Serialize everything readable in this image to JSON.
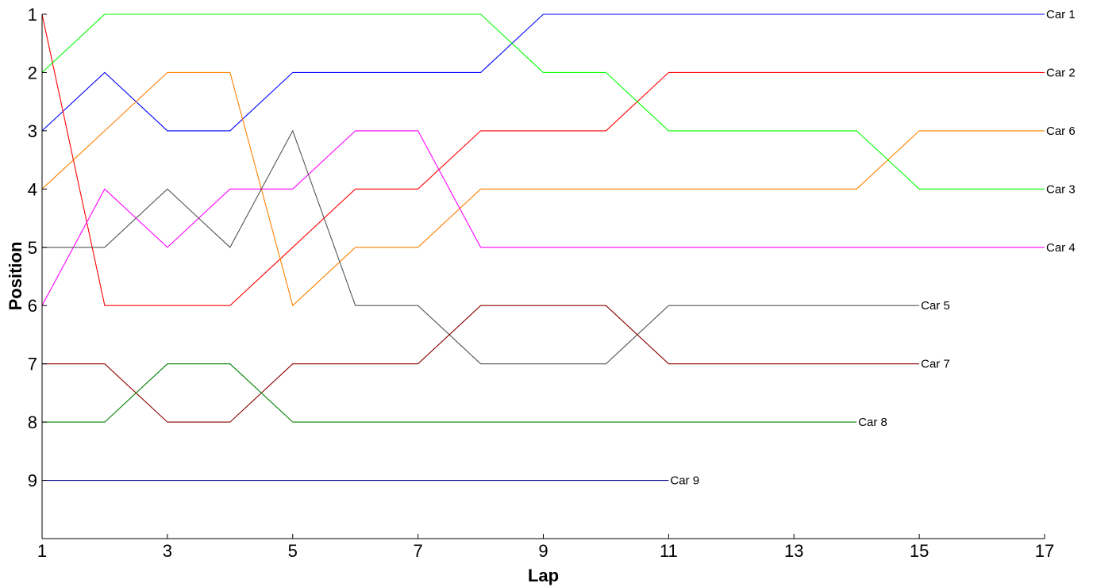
{
  "chart_data": {
    "type": "line",
    "xlabel": "Lap",
    "ylabel": "Position",
    "xlim": [
      1,
      17
    ],
    "ylim": [
      10,
      1
    ],
    "y_inverted": true,
    "xticks": [
      1,
      3,
      5,
      7,
      9,
      11,
      13,
      15,
      17
    ],
    "yticks": [
      1,
      2,
      3,
      4,
      5,
      6,
      7,
      8,
      9
    ],
    "grid": false,
    "legend": "end-of-line labels",
    "series": [
      {
        "name": "Car 1",
        "color": "#0000ff",
        "x": [
          1,
          2,
          3,
          4,
          5,
          6,
          7,
          8,
          9,
          10,
          11,
          12,
          13,
          14,
          15,
          16,
          17
        ],
        "y": [
          3,
          2,
          3,
          3,
          2,
          2,
          2,
          2,
          1,
          1,
          1,
          1,
          1,
          1,
          1,
          1,
          1
        ]
      },
      {
        "name": "Car 2",
        "color": "#ff0000",
        "x": [
          1,
          2,
          3,
          4,
          5,
          6,
          7,
          8,
          9,
          10,
          11,
          12,
          13,
          14,
          15,
          16,
          17
        ],
        "y": [
          1,
          6,
          6,
          6,
          5,
          4,
          4,
          3,
          3,
          3,
          2,
          2,
          2,
          2,
          2,
          2,
          2
        ]
      },
      {
        "name": "Car 6",
        "color": "#ff8000",
        "x": [
          1,
          2,
          3,
          4,
          5,
          6,
          7,
          8,
          9,
          10,
          11,
          12,
          13,
          14,
          15,
          16,
          17
        ],
        "y": [
          4,
          3,
          2,
          2,
          6,
          5,
          5,
          4,
          4,
          4,
          4,
          4,
          4,
          4,
          3,
          3,
          3
        ]
      },
      {
        "name": "Car 3",
        "color": "#00ff00",
        "x": [
          1,
          2,
          3,
          4,
          5,
          6,
          7,
          8,
          9,
          10,
          11,
          12,
          13,
          14,
          15,
          16,
          17
        ],
        "y": [
          2,
          1,
          1,
          1,
          1,
          1,
          1,
          1,
          2,
          2,
          3,
          3,
          3,
          3,
          4,
          4,
          4
        ]
      },
      {
        "name": "Car 4",
        "color": "#ff00ff",
        "x": [
          1,
          2,
          3,
          4,
          5,
          6,
          7,
          8,
          9,
          10,
          11,
          12,
          13,
          14,
          15,
          16,
          17
        ],
        "y": [
          6,
          4,
          5,
          4,
          4,
          3,
          3,
          5,
          5,
          5,
          5,
          5,
          5,
          5,
          5,
          5,
          5
        ]
      },
      {
        "name": "Car 5",
        "color": "#555555",
        "x": [
          1,
          2,
          3,
          4,
          5,
          6,
          7,
          8,
          9,
          10,
          11,
          12,
          13,
          14,
          15
        ],
        "y": [
          5,
          5,
          4,
          5,
          3,
          6,
          6,
          7,
          7,
          7,
          6,
          6,
          6,
          6,
          6
        ]
      },
      {
        "name": "Car 7",
        "color": "#8b0000",
        "x": [
          1,
          2,
          3,
          4,
          5,
          6,
          7,
          8,
          9,
          10,
          11,
          12,
          13,
          14,
          15
        ],
        "y": [
          7,
          7,
          8,
          8,
          7,
          7,
          7,
          6,
          6,
          6,
          7,
          7,
          7,
          7,
          7
        ]
      },
      {
        "name": "Car 8",
        "color": "#008000",
        "x": [
          1,
          2,
          3,
          4,
          5,
          6,
          7,
          8,
          9,
          10,
          11,
          12,
          13,
          14
        ],
        "y": [
          8,
          8,
          7,
          7,
          8,
          8,
          8,
          8,
          8,
          8,
          8,
          8,
          8,
          8
        ]
      },
      {
        "name": "Car 9",
        "color": "#00008b",
        "x": [
          1,
          2,
          3,
          4,
          5,
          6,
          7,
          8,
          9,
          10,
          11
        ],
        "y": [
          9,
          9,
          9,
          9,
          9,
          9,
          9,
          9,
          9,
          9,
          9
        ]
      }
    ]
  }
}
